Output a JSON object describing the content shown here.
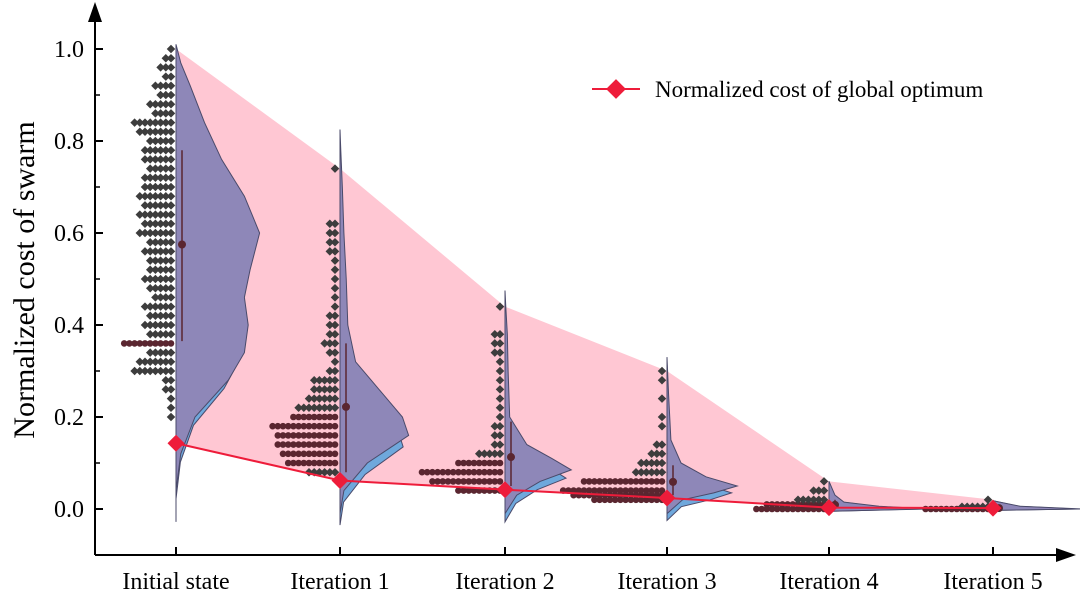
{
  "chart_data": {
    "type": "violin",
    "title": "",
    "xlabel": "",
    "ylabel": "Normalized cost of swarm",
    "ylim": [
      -0.1,
      1.1
    ],
    "yticks": [
      0.0,
      0.2,
      0.4,
      0.6,
      0.8,
      1.0
    ],
    "ytick_labels": [
      "0.0",
      "0.2",
      "0.4",
      "0.6",
      "0.8",
      "1.0"
    ],
    "categories": [
      "Initial state",
      "Iteration 1",
      "Iteration 2",
      "Iteration 3",
      "Iteration 4",
      "Iteration 5"
    ],
    "legend": {
      "label": "Normalized cost of global optimum",
      "position": "top-right"
    },
    "colors": {
      "global_line": "#ee1c3a",
      "band": "#ffc7d3",
      "violin_fill": "#8e87b8",
      "violin_under": "#6fa8dc",
      "violin_edge": "#4a4a6a",
      "dots": "#3d3d3d",
      "dots_dense": "#5a2630",
      "mean": "#5a2630"
    },
    "global_optimum": [
      0.143,
      0.062,
      0.042,
      0.024,
      0.003,
      0.002
    ],
    "swarm_max": [
      1.0,
      0.74,
      0.44,
      0.3,
      0.06,
      0.02
    ],
    "means": [
      0.575,
      0.222,
      0.113,
      0.059,
      0.009,
      0.002
    ],
    "whisker_low": [
      0.365,
      0.08,
      0.05,
      0.03,
      0.0,
      0.0
    ],
    "whisker_high": [
      0.78,
      0.36,
      0.19,
      0.095,
      0.02,
      0.005
    ],
    "violin_range": [
      [
        -0.01,
        1.01
      ],
      [
        -0.01,
        0.825
      ],
      [
        -0.01,
        0.475
      ],
      [
        -0.01,
        0.33
      ],
      [
        -0.005,
        0.06
      ],
      [
        -0.003,
        0.018
      ]
    ],
    "violin_density": [
      [
        [
          -0.01,
          0.0
        ],
        [
          0.04,
          0.0
        ],
        [
          0.12,
          0.05
        ],
        [
          0.2,
          0.2
        ],
        [
          0.28,
          0.55
        ],
        [
          0.34,
          0.72
        ],
        [
          0.4,
          0.76
        ],
        [
          0.46,
          0.72
        ],
        [
          0.52,
          0.78
        ],
        [
          0.6,
          0.88
        ],
        [
          0.68,
          0.72
        ],
        [
          0.76,
          0.48
        ],
        [
          0.84,
          0.3
        ],
        [
          0.92,
          0.15
        ],
        [
          0.97,
          0.05
        ],
        [
          1.01,
          0.0
        ]
      ],
      [
        [
          -0.01,
          0.0
        ],
        [
          0.04,
          0.05
        ],
        [
          0.1,
          0.35
        ],
        [
          0.16,
          0.88
        ],
        [
          0.2,
          0.8
        ],
        [
          0.26,
          0.5
        ],
        [
          0.32,
          0.2
        ],
        [
          0.4,
          0.1
        ],
        [
          0.5,
          0.08
        ],
        [
          0.6,
          0.05
        ],
        [
          0.7,
          0.03
        ],
        [
          0.78,
          0.01
        ],
        [
          0.825,
          0.0
        ]
      ],
      [
        [
          -0.01,
          0.0
        ],
        [
          0.03,
          0.15
        ],
        [
          0.06,
          0.45
        ],
        [
          0.085,
          0.85
        ],
        [
          0.11,
          0.6
        ],
        [
          0.14,
          0.28
        ],
        [
          0.2,
          0.06
        ],
        [
          0.3,
          0.04
        ],
        [
          0.38,
          0.03
        ],
        [
          0.44,
          0.01
        ],
        [
          0.475,
          0.0
        ]
      ],
      [
        [
          -0.01,
          0.0
        ],
        [
          0.02,
          0.2
        ],
        [
          0.035,
          0.6
        ],
        [
          0.05,
          0.9
        ],
        [
          0.07,
          0.5
        ],
        [
          0.1,
          0.18
        ],
        [
          0.15,
          0.05
        ],
        [
          0.25,
          0.02
        ],
        [
          0.33,
          0.0
        ]
      ],
      [
        [
          -0.005,
          0.0
        ],
        [
          0.0,
          1.0
        ],
        [
          0.006,
          0.5
        ],
        [
          0.015,
          0.15
        ],
        [
          0.03,
          0.06
        ],
        [
          0.06,
          0.0
        ]
      ],
      [
        [
          -0.003,
          0.0
        ],
        [
          0.0,
          1.0
        ],
        [
          0.006,
          0.3
        ],
        [
          0.018,
          0.0
        ]
      ]
    ],
    "violin_half_width": [
      95,
      78,
      78,
      78,
      100,
      90
    ],
    "violin_under_depth": [
      0.018,
      0.025,
      0.018,
      0.015,
      0.0,
      0.0
    ],
    "swarm": [
      [
        [
          0.3,
          8
        ],
        [
          0.32,
          7
        ],
        [
          0.34,
          5
        ],
        [
          0.36,
          10
        ],
        [
          0.38,
          5
        ],
        [
          0.4,
          6
        ],
        [
          0.42,
          5
        ],
        [
          0.44,
          6
        ],
        [
          0.46,
          4
        ],
        [
          0.48,
          5
        ],
        [
          0.5,
          6
        ],
        [
          0.52,
          5
        ],
        [
          0.54,
          5
        ],
        [
          0.56,
          6
        ],
        [
          0.58,
          5
        ],
        [
          0.6,
          7
        ],
        [
          0.62,
          6
        ],
        [
          0.64,
          7
        ],
        [
          0.66,
          6
        ],
        [
          0.68,
          7
        ],
        [
          0.7,
          6
        ],
        [
          0.72,
          6
        ],
        [
          0.74,
          5
        ],
        [
          0.76,
          6
        ],
        [
          0.78,
          6
        ],
        [
          0.8,
          5
        ],
        [
          0.82,
          7
        ],
        [
          0.84,
          8
        ],
        [
          0.86,
          4
        ],
        [
          0.88,
          5
        ],
        [
          0.9,
          3
        ],
        [
          0.92,
          4
        ],
        [
          0.94,
          2
        ],
        [
          0.96,
          3
        ],
        [
          0.98,
          2
        ],
        [
          1.0,
          1
        ],
        [
          0.28,
          2
        ],
        [
          0.26,
          2
        ],
        [
          0.24,
          1
        ],
        [
          0.22,
          1
        ],
        [
          0.2,
          1
        ]
      ],
      [
        [
          0.08,
          6
        ],
        [
          0.1,
          10
        ],
        [
          0.12,
          11
        ],
        [
          0.14,
          12
        ],
        [
          0.16,
          12
        ],
        [
          0.18,
          13
        ],
        [
          0.2,
          9
        ],
        [
          0.22,
          8
        ],
        [
          0.24,
          6
        ],
        [
          0.26,
          5
        ],
        [
          0.28,
          5
        ],
        [
          0.3,
          2
        ],
        [
          0.32,
          1
        ],
        [
          0.34,
          2
        ],
        [
          0.36,
          3
        ],
        [
          0.38,
          2
        ],
        [
          0.4,
          2
        ],
        [
          0.42,
          2
        ],
        [
          0.44,
          1
        ],
        [
          0.46,
          1
        ],
        [
          0.48,
          1
        ],
        [
          0.5,
          1
        ],
        [
          0.52,
          1
        ],
        [
          0.54,
          1
        ],
        [
          0.56,
          2
        ],
        [
          0.58,
          2
        ],
        [
          0.6,
          2
        ],
        [
          0.62,
          2
        ],
        [
          0.74,
          1
        ]
      ],
      [
        [
          0.04,
          9
        ],
        [
          0.06,
          14
        ],
        [
          0.08,
          16
        ],
        [
          0.1,
          9
        ],
        [
          0.12,
          5
        ],
        [
          0.14,
          2
        ],
        [
          0.16,
          2
        ],
        [
          0.18,
          2
        ],
        [
          0.2,
          1
        ],
        [
          0.22,
          1
        ],
        [
          0.24,
          1
        ],
        [
          0.26,
          1
        ],
        [
          0.28,
          1
        ],
        [
          0.3,
          1
        ],
        [
          0.32,
          1
        ],
        [
          0.34,
          2
        ],
        [
          0.36,
          2
        ],
        [
          0.38,
          2
        ],
        [
          0.44,
          1
        ]
      ],
      [
        [
          0.02,
          14
        ],
        [
          0.03,
          18
        ],
        [
          0.04,
          20
        ],
        [
          0.06,
          16
        ],
        [
          0.08,
          6
        ],
        [
          0.1,
          5
        ],
        [
          0.12,
          3
        ],
        [
          0.14,
          2
        ],
        [
          0.18,
          1
        ],
        [
          0.2,
          1
        ],
        [
          0.24,
          1
        ],
        [
          0.28,
          1
        ],
        [
          0.3,
          1
        ]
      ],
      [
        [
          0.0,
          14
        ],
        [
          0.01,
          12
        ],
        [
          0.02,
          6
        ],
        [
          0.04,
          3
        ],
        [
          0.06,
          1
        ]
      ],
      [
        [
          0.0,
          13
        ],
        [
          0.005,
          6
        ],
        [
          0.02,
          1
        ]
      ]
    ]
  }
}
